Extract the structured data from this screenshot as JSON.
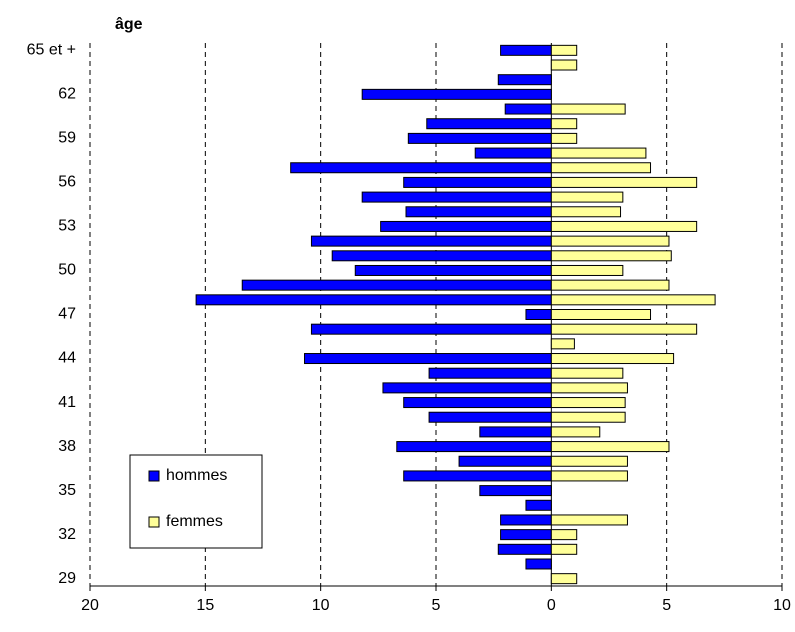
{
  "chart_data": {
    "type": "pyramid",
    "title": "âge",
    "categories": [
      "29",
      null,
      null,
      "32",
      null,
      null,
      "35",
      null,
      null,
      "38",
      null,
      null,
      "41",
      null,
      null,
      "44",
      null,
      null,
      "47",
      null,
      null,
      "50",
      null,
      null,
      "53",
      null,
      null,
      "56",
      null,
      null,
      "59",
      null,
      null,
      "62",
      null,
      null,
      "65 et +"
    ],
    "series": [
      {
        "name": "hommes",
        "color": "#0000ff",
        "values": [
          0,
          1.1,
          2.3,
          2.2,
          2.2,
          1.1,
          3.1,
          6.4,
          4.0,
          6.7,
          3.1,
          5.3,
          6.4,
          7.3,
          5.3,
          10.7,
          0,
          10.4,
          1.1,
          15.4,
          13.4,
          8.5,
          9.5,
          10.4,
          7.4,
          6.3,
          8.2,
          6.4,
          11.3,
          3.3,
          6.2,
          5.4,
          2.0,
          8.2,
          2.3,
          0,
          2.2
        ]
      },
      {
        "name": "femmes",
        "color": "#ffff99",
        "values": [
          1.1,
          0,
          1.1,
          1.1,
          3.3,
          0,
          0,
          3.3,
          3.3,
          5.1,
          2.1,
          3.2,
          3.2,
          3.3,
          3.1,
          5.3,
          1.0,
          6.3,
          4.3,
          7.1,
          5.1,
          3.1,
          5.2,
          5.1,
          6.3,
          3.0,
          3.1,
          6.3,
          4.3,
          4.1,
          1.1,
          1.1,
          3.2,
          0,
          0,
          1.1,
          1.1
        ]
      }
    ],
    "xlim": [
      -20,
      10
    ],
    "xticks": [
      {
        "value": -20,
        "label": "20"
      },
      {
        "value": -15,
        "label": "15"
      },
      {
        "value": -10,
        "label": "10"
      },
      {
        "value": -5,
        "label": "5"
      },
      0,
      5,
      10
    ],
    "grid": true,
    "legend": "lower-left"
  }
}
